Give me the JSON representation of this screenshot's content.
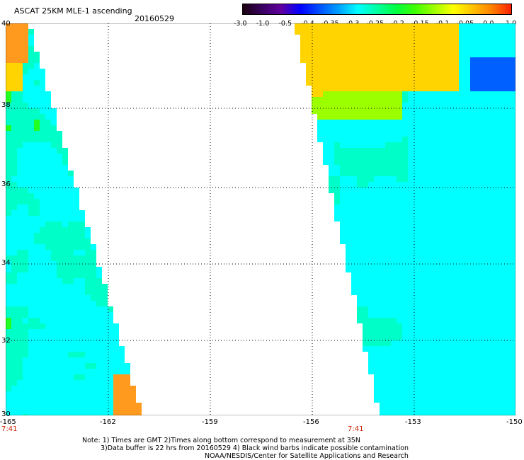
{
  "header": {
    "title": "ASCAT 25KM MLE-1 ascending",
    "date": "20160529"
  },
  "colorbar": {
    "tick_labels": [
      "-3.0",
      "-1.0",
      "-0.5",
      "-0.4",
      "-0.35",
      "-0.3",
      "-0.25",
      "-0.2",
      "-0.15",
      "-0.1",
      "-0.05",
      "0.0",
      "1.0"
    ],
    "colors": [
      "#1a0010",
      "#3a0060",
      "#6000a0",
      "#0000ff",
      "#0050ff",
      "#00a0ff",
      "#00ffff",
      "#00ffa0",
      "#00ff40",
      "#40ff00",
      "#a0ff00",
      "#ffff00",
      "#ffc000",
      "#ff8000",
      "#ff2000"
    ]
  },
  "map": {
    "y_ticks": [
      "40",
      "38",
      "36",
      "34",
      "32",
      "30"
    ],
    "x_ticks": [
      "-165",
      "-162",
      "-159",
      "-156",
      "-153",
      "-150"
    ],
    "lat_range": [
      30,
      40
    ],
    "lon_range": [
      -165,
      -150
    ],
    "swath_times": [
      "7:41",
      "7:41"
    ],
    "palette": {
      "orange": "#ff9a1e",
      "yellow": "#ffd400",
      "lime": "#9cff00",
      "green": "#22ff20",
      "aqua": "#00ffc8",
      "cyan": "#00ffff",
      "blue": "#0060ff",
      "purple": "#6000c0"
    }
  },
  "notes": {
    "line1": "Note: 1) Times are GMT 2)Times along bottom correspond to measurement at 35N",
    "line2": "3)Data buffer is 22 hrs from 20160529 4) Black wind barbs indicate possible contamination",
    "line3": "NOAA/NESDIS/Center for Satellite Applications and Research"
  }
}
